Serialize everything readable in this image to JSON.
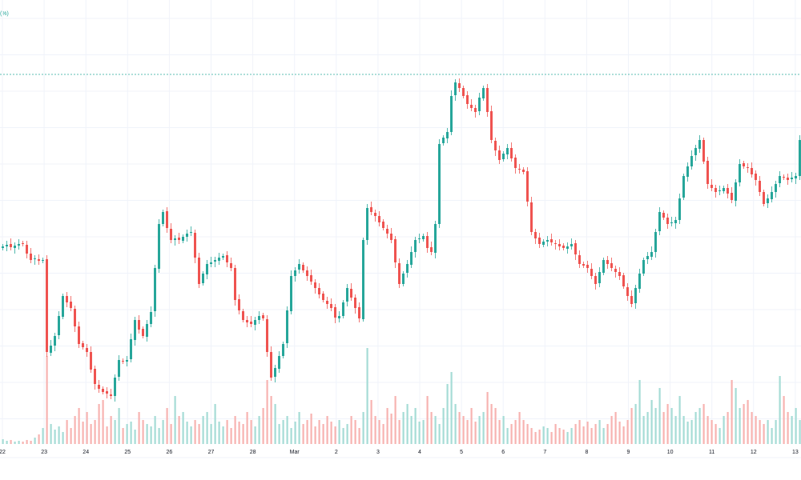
{
  "header": {
    "scale_label": "(%)"
  },
  "colors": {
    "up": "#26a69a",
    "down": "#ef5350",
    "up_volume": "#a6dcd6",
    "down_volume": "#f7b3b1",
    "grid": "#f0f3fa",
    "price_line": "#26a69a"
  },
  "chart_data": {
    "type": "candlestick",
    "title": "",
    "xlabel": "",
    "ylabel": "",
    "grid": true,
    "x_tick_labels": [
      "22",
      "23",
      "24",
      "25",
      "26",
      "27",
      "28",
      "Mar",
      "2",
      "3",
      "4",
      "5",
      "6",
      "7",
      "8",
      "9",
      "10",
      "11",
      "12",
      "13"
    ],
    "price_line": 507,
    "closes": [
      292,
      294,
      291,
      293,
      295,
      295,
      283,
      275,
      277,
      274,
      275,
      160,
      168,
      180,
      205,
      230,
      222,
      215,
      192,
      170,
      166,
      160,
      138,
      120,
      114,
      110,
      108,
      105,
      128,
      150,
      148,
      150,
      176,
      200,
      188,
      180,
      195,
      210,
      265,
      320,
      335,
      315,
      300,
      302,
      300,
      304,
      308,
      310,
      278,
      245,
      258,
      270,
      272,
      275,
      278,
      280,
      272,
      265,
      225,
      212,
      200,
      197,
      195,
      200,
      205,
      202,
      160,
      128,
      140,
      155,
      170,
      212,
      255,
      262,
      270,
      262,
      255,
      248,
      240,
      232,
      225,
      220,
      215,
      203,
      205,
      222,
      240,
      228,
      215,
      202,
      300,
      340,
      335,
      330,
      322,
      315,
      308,
      300,
      272,
      245,
      258,
      270,
      285,
      300,
      302,
      305,
      290,
      285,
      320,
      420,
      428,
      435,
      480,
      497,
      490,
      480,
      470,
      465,
      460,
      478,
      490,
      460,
      425,
      412,
      400,
      408,
      415,
      402,
      390,
      388,
      385,
      348,
      310,
      302,
      295,
      298,
      300,
      297,
      295,
      292,
      290,
      292,
      295,
      282,
      270,
      268,
      265,
      255,
      245,
      260,
      275,
      270,
      265,
      260,
      255,
      242,
      230,
      220,
      240,
      258,
      275,
      280,
      285,
      310,
      335,
      328,
      320,
      322,
      325,
      352,
      380,
      392,
      405,
      415,
      425,
      398,
      370,
      365,
      360,
      362,
      365,
      358,
      350,
      372,
      395,
      392,
      390,
      382,
      375,
      360,
      345,
      352,
      360,
      370,
      380,
      378,
      375,
      378,
      380,
      425
    ],
    "volumes": [
      6,
      4,
      5,
      3,
      4,
      3,
      5,
      4,
      8,
      12,
      20,
      110,
      25,
      18,
      22,
      15,
      30,
      20,
      35,
      45,
      28,
      40,
      25,
      30,
      50,
      55,
      22,
      35,
      30,
      45,
      20,
      25,
      28,
      18,
      40,
      30,
      25,
      22,
      35,
      20,
      30,
      45,
      25,
      60,
      35,
      40,
      28,
      22,
      30,
      25,
      35,
      40,
      25,
      50,
      28,
      22,
      30,
      20,
      35,
      28,
      25,
      40,
      30,
      22,
      35,
      45,
      80,
      60,
      50,
      25,
      30,
      35,
      20,
      28,
      40,
      25,
      30,
      38,
      22,
      30,
      25,
      35,
      28,
      22,
      30,
      20,
      25,
      35,
      30,
      20,
      40,
      120,
      55,
      35,
      30,
      25,
      45,
      38,
      60,
      30,
      40,
      50,
      35,
      45,
      28,
      30,
      60,
      40,
      35,
      25,
      45,
      75,
      90,
      50,
      40,
      35,
      30,
      45,
      28,
      35,
      40,
      65,
      50,
      45,
      30,
      35,
      20,
      25,
      30,
      40,
      30,
      25,
      20,
      15,
      18,
      22,
      20,
      15,
      25,
      20,
      18,
      15,
      20,
      25,
      30,
      22,
      28,
      20,
      25,
      30,
      20,
      25,
      35,
      40,
      28,
      22,
      30,
      45,
      50,
      80,
      35,
      40,
      55,
      45,
      70,
      40,
      50,
      45,
      35,
      60,
      35,
      28,
      30,
      40,
      45,
      50,
      35,
      30,
      25,
      20,
      35,
      40,
      80,
      70,
      45,
      50,
      55,
      40,
      35,
      30,
      25,
      30,
      20,
      30,
      85,
      60,
      40,
      35,
      45,
      30
    ]
  }
}
